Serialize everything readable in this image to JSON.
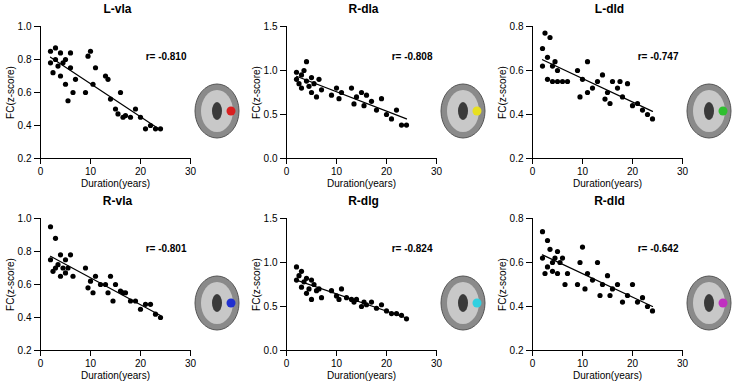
{
  "chart_data": [
    {
      "type": "scatter",
      "title": "L-vla",
      "x_label": "Duration(years)",
      "y_label": "FC(z-score)",
      "annotation": "r= -0.810",
      "color": "#d92020",
      "xlim": [
        0,
        30
      ],
      "xticks": [
        0,
        10,
        20,
        30
      ],
      "ylim": [
        0.2,
        1.0
      ],
      "yticks": [
        0.2,
        0.4,
        0.6,
        0.8,
        {
          "value": 1.0,
          "label": "1.0"
        }
      ],
      "x": [
        2,
        2,
        2.5,
        3,
        3,
        3.5,
        4,
        4,
        4.5,
        5,
        5,
        5.5,
        6,
        6,
        6.5,
        7,
        9,
        9.5,
        10,
        10.5,
        11,
        13,
        13.5,
        14,
        15,
        15.5,
        16,
        16.5,
        17,
        18,
        19,
        20,
        21,
        22,
        23,
        24
      ],
      "values": [
        0.78,
        0.85,
        0.72,
        0.87,
        0.8,
        0.76,
        0.84,
        0.7,
        0.78,
        0.65,
        0.8,
        0.55,
        0.84,
        0.75,
        0.6,
        0.68,
        0.6,
        0.82,
        0.85,
        0.65,
        0.75,
        0.7,
        0.68,
        0.56,
        0.5,
        0.47,
        0.6,
        0.45,
        0.46,
        0.45,
        0.5,
        0.45,
        0.38,
        0.4,
        0.38,
        0.38
      ]
    },
    {
      "type": "scatter",
      "title": "R-dla",
      "x_label": "Duration(years)",
      "y_label": "FC(z-score)",
      "annotation": "r= -0.808",
      "color": "#e8e020",
      "xlim": [
        0,
        30
      ],
      "xticks": [
        0,
        10,
        20,
        30
      ],
      "ylim": [
        0.0,
        1.5
      ],
      "yticks": [
        {
          "value": 0.0,
          "label": "0.0"
        },
        0.5,
        {
          "value": 1.0,
          "label": "1.0"
        },
        1.5
      ],
      "x": [
        2,
        2,
        2.5,
        3,
        3,
        3.5,
        4,
        4,
        4.5,
        5,
        5,
        5.5,
        6,
        6.5,
        7,
        9,
        10,
        10.5,
        11,
        13,
        13.5,
        14,
        15,
        15.5,
        16,
        17,
        18,
        19,
        20,
        21,
        22,
        23,
        24
      ],
      "values": [
        0.98,
        0.9,
        0.85,
        0.95,
        0.8,
        1.0,
        1.1,
        0.88,
        0.82,
        0.92,
        0.75,
        0.85,
        0.7,
        0.9,
        0.78,
        0.72,
        0.8,
        0.68,
        0.75,
        0.8,
        0.62,
        0.7,
        0.75,
        0.6,
        0.72,
        0.65,
        0.55,
        0.68,
        0.5,
        0.45,
        0.55,
        0.38,
        0.38
      ]
    },
    {
      "type": "scatter",
      "title": "L-dld",
      "x_label": "Duration(years)",
      "y_label": "FC(z-score)",
      "annotation": "r= -0.747",
      "color": "#30c030",
      "xlim": [
        0,
        30
      ],
      "xticks": [
        0,
        10,
        20,
        30
      ],
      "ylim": [
        0.2,
        0.8
      ],
      "yticks": [
        0.2,
        0.4,
        0.6,
        0.8
      ],
      "x": [
        2,
        2,
        2.5,
        3,
        3,
        3.5,
        4,
        4,
        4.5,
        5,
        5,
        6,
        7,
        9,
        9.5,
        10,
        11,
        11,
        12,
        13,
        14,
        14.5,
        15,
        15.5,
        16,
        17,
        17.5,
        18,
        19,
        20,
        21,
        22,
        23,
        24
      ],
      "values": [
        0.7,
        0.62,
        0.77,
        0.66,
        0.56,
        0.75,
        0.62,
        0.55,
        0.64,
        0.6,
        0.55,
        0.55,
        0.55,
        0.6,
        0.48,
        0.56,
        0.5,
        0.64,
        0.52,
        0.55,
        0.58,
        0.47,
        0.5,
        0.45,
        0.55,
        0.52,
        0.55,
        0.48,
        0.54,
        0.44,
        0.45,
        0.42,
        0.4,
        0.38
      ]
    },
    {
      "type": "scatter",
      "title": "R-vla",
      "x_label": "Duration(years)",
      "y_label": "FC(z-score)",
      "annotation": "r= -0.801",
      "color": "#2030d0",
      "xlim": [
        0,
        30
      ],
      "xticks": [
        0,
        10,
        20,
        30
      ],
      "ylim": [
        0.2,
        1.0
      ],
      "yticks": [
        0.2,
        0.4,
        0.6,
        0.8,
        {
          "value": 1.0,
          "label": "1.0"
        }
      ],
      "x": [
        2,
        2,
        2.5,
        3,
        3,
        3.5,
        4,
        4,
        4.5,
        5,
        5,
        5.5,
        6,
        6.5,
        9,
        9.5,
        10,
        10.5,
        11,
        12,
        13,
        13.5,
        14,
        14.5,
        15,
        16,
        16.5,
        17,
        18,
        19,
        20,
        21,
        22,
        23,
        24
      ],
      "values": [
        0.95,
        0.75,
        0.68,
        0.88,
        0.7,
        0.72,
        0.78,
        0.65,
        0.7,
        0.75,
        0.67,
        0.7,
        0.78,
        0.65,
        0.7,
        0.58,
        0.62,
        0.55,
        0.65,
        0.6,
        0.6,
        0.55,
        0.65,
        0.5,
        0.6,
        0.56,
        0.55,
        0.55,
        0.5,
        0.5,
        0.45,
        0.48,
        0.48,
        0.42,
        0.4
      ]
    },
    {
      "type": "scatter",
      "title": "R-dlg",
      "x_label": "Duration(years)",
      "y_label": "FC(z-score)",
      "annotation": "r= -0.824",
      "color": "#30d0e0",
      "xlim": [
        0,
        30
      ],
      "xticks": [
        0,
        10,
        20,
        30
      ],
      "ylim": [
        0.0,
        1.5
      ],
      "yticks": [
        {
          "value": 0.0,
          "label": "0.0"
        },
        0.5,
        {
          "value": 1.0,
          "label": "1.0"
        },
        1.5
      ],
      "x": [
        2,
        2,
        2.5,
        3,
        3,
        3.5,
        4,
        4,
        4.5,
        5,
        5,
        5.5,
        6,
        6.5,
        7,
        9,
        10,
        10.5,
        11,
        12,
        13,
        13.5,
        14,
        15,
        15.5,
        16,
        17,
        18,
        19,
        20,
        21,
        22,
        23,
        24
      ],
      "values": [
        0.95,
        0.8,
        0.85,
        0.72,
        0.9,
        0.78,
        0.82,
        0.65,
        0.7,
        0.8,
        0.58,
        0.75,
        0.68,
        0.7,
        0.6,
        0.68,
        0.62,
        0.58,
        0.7,
        0.6,
        0.58,
        0.55,
        0.58,
        0.5,
        0.55,
        0.52,
        0.55,
        0.48,
        0.52,
        0.45,
        0.42,
        0.42,
        0.4,
        0.36
      ]
    },
    {
      "type": "scatter",
      "title": "R-dld",
      "x_label": "Duration(years)",
      "y_label": "FC(z-score)",
      "annotation": "r= -0.642",
      "color": "#c030c0",
      "xlim": [
        0,
        30
      ],
      "xticks": [
        0,
        10,
        20,
        30
      ],
      "ylim": [
        0.2,
        0.8
      ],
      "yticks": [
        0.2,
        0.4,
        0.6,
        0.8
      ],
      "x": [
        2,
        2,
        2.5,
        3,
        3,
        3.5,
        4,
        4,
        4.5,
        5,
        5,
        5.5,
        6,
        6.5,
        7,
        9,
        9.5,
        10,
        10.5,
        11,
        12,
        13,
        13.5,
        14,
        15,
        15.5,
        16,
        17,
        18,
        19,
        20,
        21,
        22,
        23,
        24
      ],
      "values": [
        0.74,
        0.62,
        0.55,
        0.7,
        0.58,
        0.66,
        0.6,
        0.56,
        0.62,
        0.65,
        0.55,
        0.6,
        0.62,
        0.5,
        0.55,
        0.5,
        0.6,
        0.67,
        0.48,
        0.55,
        0.52,
        0.6,
        0.45,
        0.5,
        0.54,
        0.45,
        0.48,
        0.5,
        0.42,
        0.45,
        0.5,
        0.42,
        0.44,
        0.4,
        0.38
      ]
    }
  ]
}
